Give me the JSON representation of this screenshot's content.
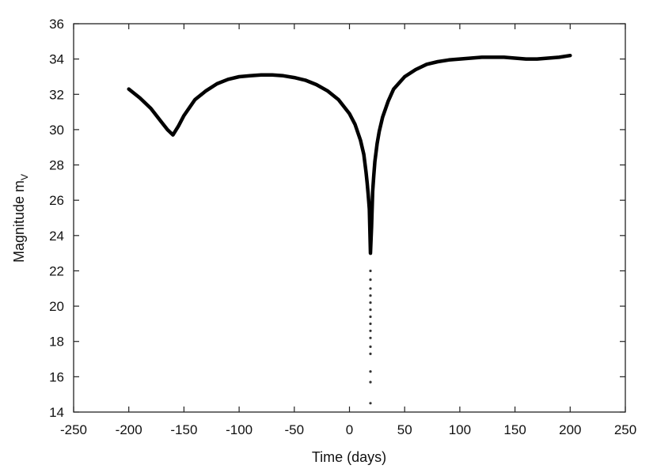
{
  "chart_data": {
    "type": "line",
    "title": "",
    "xlabel": "Time (days)",
    "ylabel_main": "Magnitude m",
    "ylabel_sub": "V",
    "xlim": [
      -250,
      250
    ],
    "ylim": [
      14,
      36
    ],
    "xticks": [
      "-250",
      "-200",
      "-150",
      "-100",
      "-50",
      "0",
      "50",
      "100",
      "150",
      "200",
      "250"
    ],
    "yticks": [
      "14",
      "16",
      "18",
      "20",
      "22",
      "24",
      "26",
      "28",
      "30",
      "32",
      "34",
      "36"
    ],
    "grid": false,
    "series": [
      {
        "x": [
          -200,
          -190,
          -180,
          -170,
          -165,
          -160,
          -155,
          -150,
          -140,
          -130,
          -120,
          -110,
          -100,
          -90,
          -80,
          -70,
          -60,
          -50,
          -40,
          -30,
          -20,
          -10,
          0,
          5,
          10,
          13,
          15,
          16,
          17,
          18,
          19,
          20,
          21,
          22,
          23,
          25,
          27,
          30,
          35,
          40,
          50,
          60,
          70,
          80,
          90,
          100,
          110,
          120,
          130,
          140,
          150,
          160,
          170,
          180,
          190,
          200
        ],
        "y": [
          32.3,
          31.8,
          31.2,
          30.4,
          30.0,
          29.7,
          30.2,
          30.8,
          31.7,
          32.2,
          32.6,
          32.85,
          33.0,
          33.05,
          33.1,
          33.1,
          33.05,
          32.95,
          32.8,
          32.55,
          32.2,
          31.7,
          30.9,
          30.3,
          29.4,
          28.6,
          27.6,
          27.0,
          26.3,
          25.5,
          23.0,
          24.5,
          26.5,
          27.4,
          28.2,
          29.2,
          29.9,
          30.7,
          31.6,
          32.3,
          33.0,
          33.4,
          33.7,
          33.85,
          33.95,
          34.0,
          34.05,
          34.1,
          34.1,
          34.1,
          34.05,
          34.0,
          34.0,
          34.05,
          34.1,
          34.2
        ]
      },
      {
        "x": [
          19,
          19,
          19,
          19,
          19,
          19,
          19,
          19,
          19,
          19,
          19,
          19,
          19,
          19,
          19
        ],
        "y": [
          22.0,
          21.5,
          21.0,
          20.6,
          20.2,
          19.8,
          19.4,
          19.0,
          18.6,
          18.2,
          17.7,
          17.3,
          16.3,
          15.7,
          14.5
        ]
      }
    ]
  }
}
